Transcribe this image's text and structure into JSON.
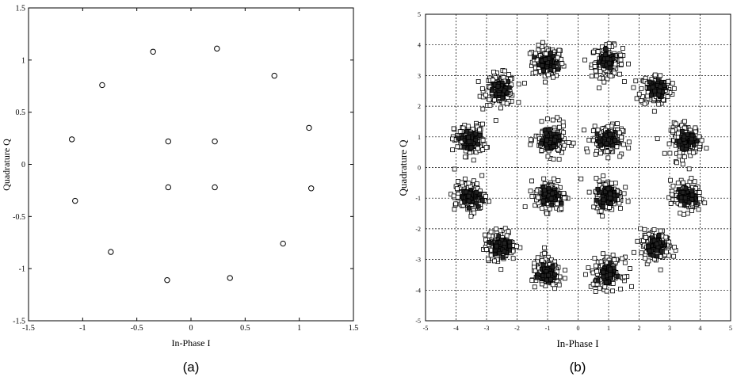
{
  "chart_data": [
    {
      "type": "scatter",
      "caption": "(a)",
      "xlabel": "In-Phase I",
      "ylabel": "Quadrature Q",
      "xlim": [
        -1.5,
        1.5
      ],
      "ylim": [
        -1.5,
        1.5
      ],
      "xticks": [
        "-1.5",
        "-1",
        "-0.5",
        "0",
        "0.5",
        "1",
        "1.5"
      ],
      "yticks": [
        "-1.5",
        "-1",
        "-0.5",
        "0",
        "0.5",
        "1",
        "1.5"
      ],
      "grid": false,
      "marker": "circle",
      "points": [
        {
          "x": -0.35,
          "y": 1.08
        },
        {
          "x": 0.24,
          "y": 1.11
        },
        {
          "x": -0.82,
          "y": 0.76
        },
        {
          "x": 0.77,
          "y": 0.85
        },
        {
          "x": -1.1,
          "y": 0.24
        },
        {
          "x": 1.09,
          "y": 0.35
        },
        {
          "x": -0.21,
          "y": 0.22
        },
        {
          "x": 0.22,
          "y": 0.22
        },
        {
          "x": -0.21,
          "y": -0.22
        },
        {
          "x": 0.22,
          "y": -0.22
        },
        {
          "x": -1.07,
          "y": -0.35
        },
        {
          "x": 1.11,
          "y": -0.23
        },
        {
          "x": -0.74,
          "y": -0.84
        },
        {
          "x": 0.85,
          "y": -0.76
        },
        {
          "x": -0.22,
          "y": -1.11
        },
        {
          "x": 0.36,
          "y": -1.09
        }
      ]
    },
    {
      "type": "scatter",
      "caption": "(b)",
      "xlabel": "In-Phase I",
      "ylabel": "Quadrature Q",
      "xlim": [
        -5,
        5
      ],
      "ylim": [
        -5,
        5
      ],
      "xticks": [
        "-5",
        "-4",
        "-3",
        "-2",
        "-1",
        "0",
        "1",
        "2",
        "3",
        "4",
        "5"
      ],
      "yticks": [
        "-5",
        "-4",
        "-3",
        "-2",
        "-1",
        "0",
        "1",
        "2",
        "3",
        "4",
        "5"
      ],
      "grid": true,
      "marker": "square",
      "cluster_centers": [
        {
          "x": -1.0,
          "y": 3.45
        },
        {
          "x": 0.95,
          "y": 3.45
        },
        {
          "x": -2.55,
          "y": 2.55
        },
        {
          "x": 2.55,
          "y": 2.55
        },
        {
          "x": -3.55,
          "y": 0.9
        },
        {
          "x": 3.55,
          "y": 0.9
        },
        {
          "x": -0.9,
          "y": 0.9
        },
        {
          "x": 0.95,
          "y": 0.9
        },
        {
          "x": -0.9,
          "y": -0.9
        },
        {
          "x": 0.95,
          "y": -0.9
        },
        {
          "x": -3.55,
          "y": -0.95
        },
        {
          "x": 3.55,
          "y": -0.95
        },
        {
          "x": -2.55,
          "y": -2.55
        },
        {
          "x": 2.55,
          "y": -2.55
        },
        {
          "x": -1.0,
          "y": -3.45
        },
        {
          "x": 0.95,
          "y": -3.45
        }
      ],
      "cluster_spread": 0.28
    }
  ]
}
